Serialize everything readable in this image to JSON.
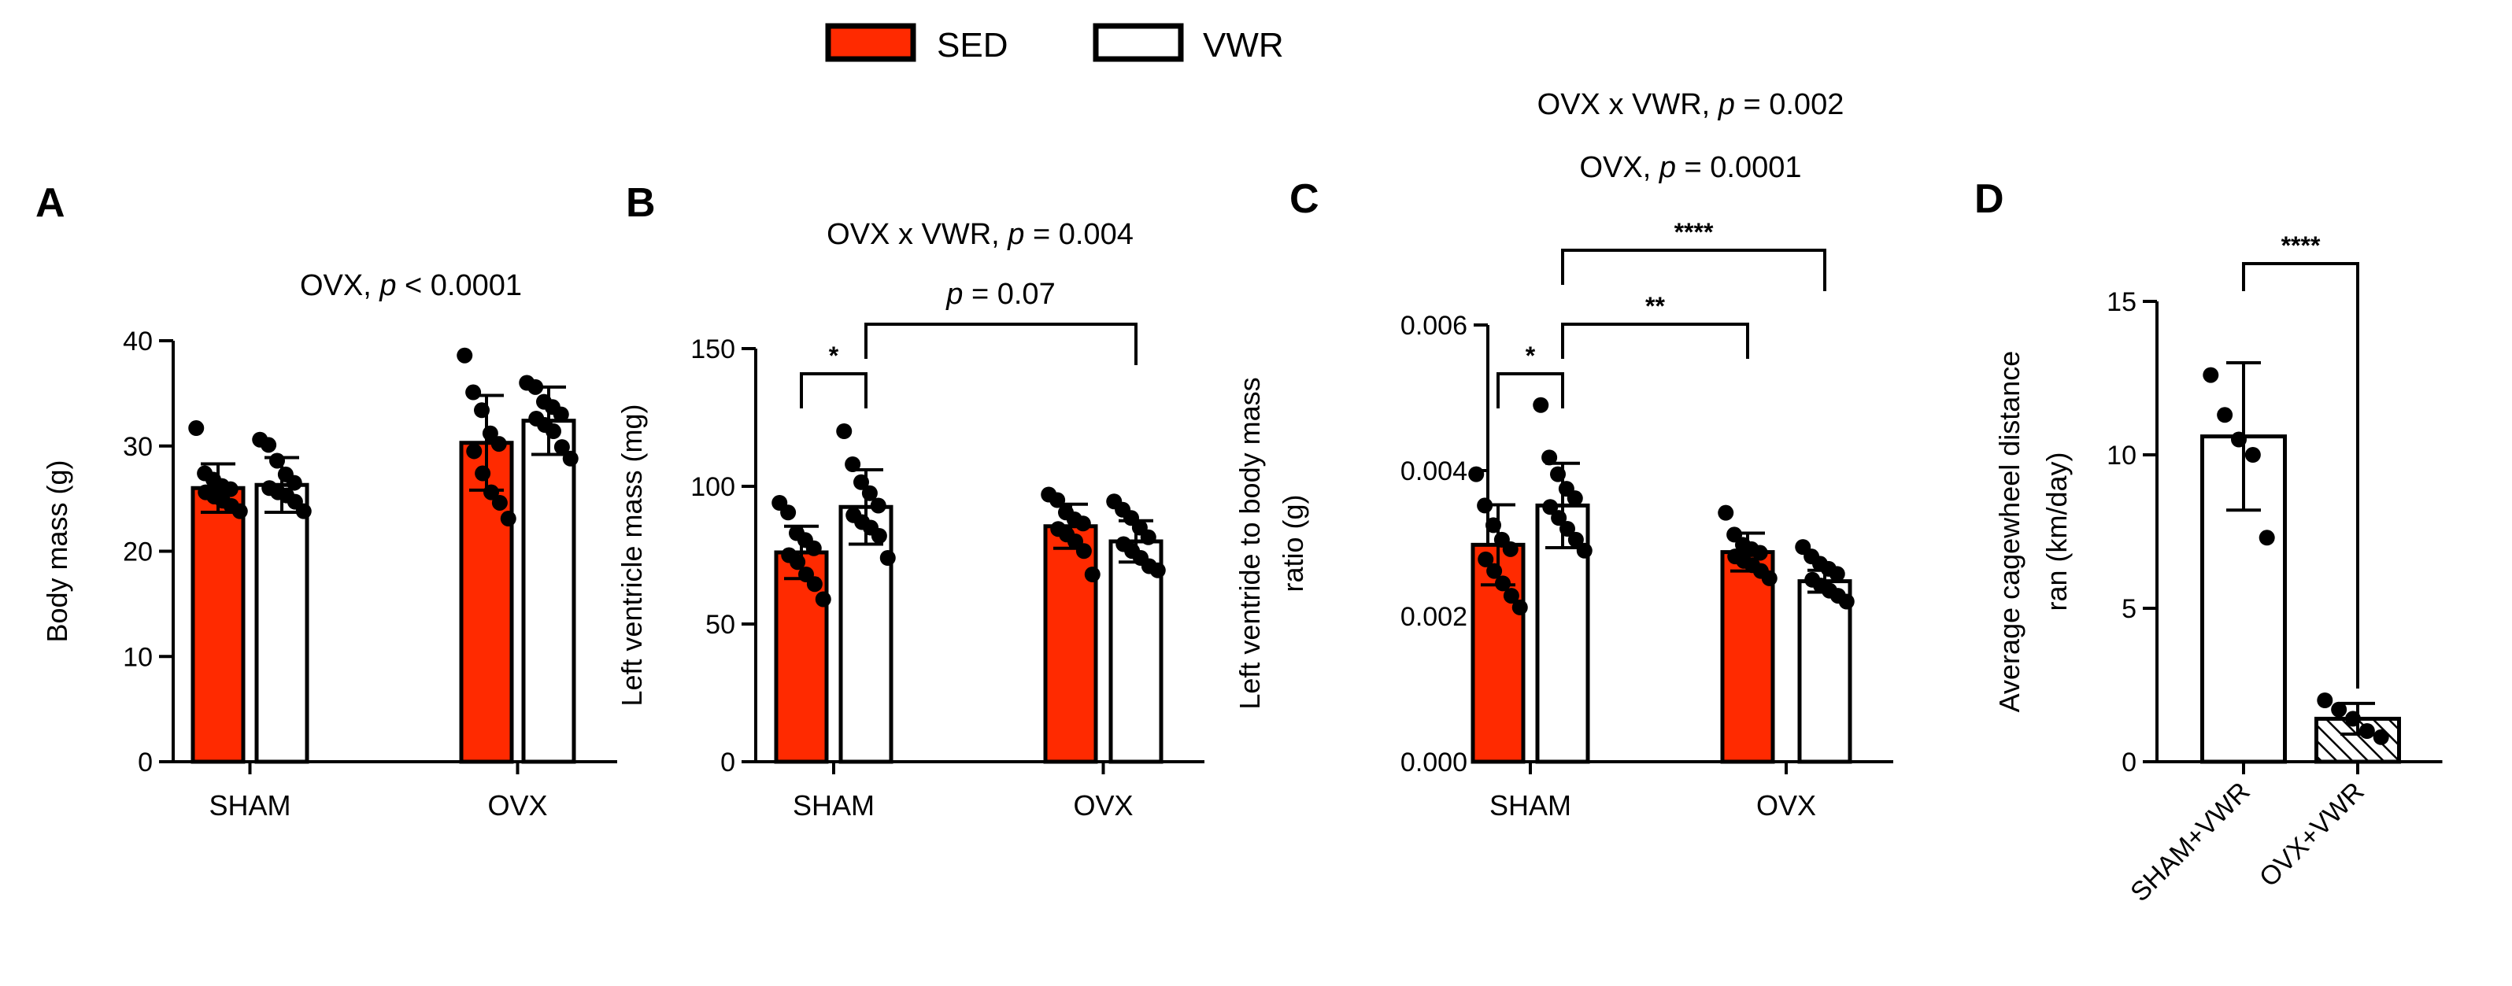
{
  "legend": {
    "items": [
      {
        "label": "SED",
        "color": "#ff2a00"
      },
      {
        "label": "VWR",
        "color": "#ffffff"
      }
    ]
  },
  "colors": {
    "sed": "#ff2a00",
    "vwr": "#ffffff",
    "axis": "#000000"
  },
  "chart_data": [
    {
      "id": "A",
      "panel_label": "A",
      "type": "bar",
      "title": "",
      "ylabel": "Body mass (g)",
      "xlabel": "",
      "categories": [
        "SHAM",
        "OVX"
      ],
      "ylim": [
        0,
        40
      ],
      "yticks": [
        0,
        10,
        20,
        30,
        40
      ],
      "series": [
        {
          "name": "SED",
          "values": [
            26.0,
            30.3
          ],
          "errors": [
            2.3,
            4.5
          ],
          "points": [
            [
              31.7,
              27.4,
              26.8,
              26.2,
              25.9,
              25.6,
              25.2,
              24.8,
              24.3,
              23.8
            ],
            [
              38.6,
              35.1,
              33.4,
              31.2,
              30.2,
              29.5,
              27.4,
              25.6,
              24.6,
              23.1
            ]
          ]
        },
        {
          "name": "VWR",
          "values": [
            26.3,
            32.4
          ],
          "errors": [
            2.6,
            3.2
          ],
          "points": [
            [
              30.6,
              30.1,
              28.6,
              27.3,
              26.5,
              26.0,
              25.6,
              25.3,
              24.7,
              23.8
            ],
            [
              36.0,
              35.6,
              34.2,
              33.7,
              33.0,
              32.6,
              32.0,
              31.4,
              29.9,
              28.8
            ]
          ]
        }
      ],
      "annotations": [
        {
          "kind": "header",
          "lines": [
            {
              "pre": "OVX, ",
              "p": "p",
              "post": " < 0.0001"
            }
          ]
        }
      ]
    },
    {
      "id": "B",
      "panel_label": "B",
      "type": "bar",
      "title": "",
      "ylabel": "Left ventricle mass (mg)",
      "xlabel": "",
      "categories": [
        "SHAM",
        "OVX"
      ],
      "ylim": [
        0,
        150
      ],
      "yticks": [
        0,
        50,
        100,
        150
      ],
      "series": [
        {
          "name": "SED",
          "values": [
            76.0,
            85.5
          ],
          "errors": [
            9.5,
            8.0
          ],
          "points": [
            [
              94.0,
              90.5,
              83.0,
              80.5,
              77.5,
              75.0,
              72.5,
              68.0,
              64.5,
              59.0
            ],
            [
              97.0,
              95.0,
              90.5,
              88.0,
              86.5,
              84.5,
              82.5,
              80.0,
              76.5,
              68.0
            ]
          ]
        },
        {
          "name": "VWR",
          "values": [
            92.5,
            80.0
          ],
          "errors": [
            13.5,
            7.5
          ],
          "points": [
            [
              120.0,
              108.0,
              101.5,
              97.5,
              93.0,
              89.5,
              87.0,
              85.0,
              82.0,
              74.0
            ],
            [
              94.5,
              91.5,
              88.5,
              85.0,
              81.5,
              79.0,
              76.5,
              74.0,
              71.0,
              69.5
            ]
          ]
        }
      ],
      "annotations": [
        {
          "kind": "header",
          "lines": [
            {
              "pre": "OVX x VWR, ",
              "p": "p",
              "post": " = 0.004"
            }
          ]
        },
        {
          "kind": "bracket",
          "from": [
            0,
            0
          ],
          "to": [
            0,
            1
          ],
          "label": "*"
        },
        {
          "kind": "bracket",
          "from": [
            0,
            1
          ],
          "to": [
            1,
            1
          ],
          "label_pre": "",
          "p": "p",
          "label_post": " = 0.07"
        }
      ]
    },
    {
      "id": "C",
      "panel_label": "C",
      "type": "bar",
      "title": "",
      "ylabel": "Left ventride to body mass ratio (g)",
      "ylabel_lines": [
        "Left ventride to body mass",
        "ratio (g)"
      ],
      "xlabel": "",
      "categories": [
        "SHAM",
        "OVX"
      ],
      "ylim": [
        0,
        0.006
      ],
      "yticks": [
        0.0,
        0.002,
        0.004,
        0.006
      ],
      "ytick_labels": [
        "0.000",
        "0.002",
        "0.004",
        "0.006"
      ],
      "series": [
        {
          "name": "SED",
          "values": [
            0.00298,
            0.00288
          ],
          "errors": [
            0.00055,
            0.00026
          ],
          "points": [
            [
              0.00395,
              0.00352,
              0.00325,
              0.00305,
              0.00292,
              0.00278,
              0.00262,
              0.00245,
              0.00228,
              0.00212
            ],
            [
              0.00342,
              0.00312,
              0.00298,
              0.00292,
              0.00287,
              0.00282,
              0.00276,
              0.0027,
              0.00262,
              0.00252
            ]
          ]
        },
        {
          "name": "VWR",
          "values": [
            0.00352,
            0.00248
          ],
          "errors": [
            0.00058,
            0.00015
          ],
          "points": [
            [
              0.0049,
              0.00418,
              0.00395,
              0.00375,
              0.00362,
              0.0035,
              0.00335,
              0.0032,
              0.00305,
              0.0029
            ],
            [
              0.00295,
              0.00282,
              0.00272,
              0.00265,
              0.00258,
              0.0025,
              0.00242,
              0.00235,
              0.00228,
              0.0022
            ]
          ]
        }
      ],
      "annotations": [
        {
          "kind": "header",
          "lines": [
            {
              "pre": "OVX x VWR, ",
              "p": "p",
              "post": " = 0.002"
            },
            {
              "pre": "OVX, ",
              "p": "p",
              "post": " = 0.0001"
            }
          ]
        },
        {
          "kind": "bracket",
          "from": [
            0,
            0
          ],
          "to": [
            0,
            1
          ],
          "label": "*"
        },
        {
          "kind": "bracket",
          "from": [
            0,
            1
          ],
          "to": [
            1,
            0
          ],
          "label": "**"
        },
        {
          "kind": "bracket",
          "from": [
            0,
            1
          ],
          "to": [
            1,
            1
          ],
          "label": "****"
        }
      ]
    },
    {
      "id": "D",
      "panel_label": "D",
      "type": "bar",
      "title": "",
      "ylabel": "Average cagewheel distance ran (km/day)",
      "ylabel_lines": [
        "Average cagewheel distance",
        "ran (km/day)"
      ],
      "xlabel": "",
      "categories": [
        "SHAM+VWR",
        "OVX+VWR"
      ],
      "ylim": [
        0,
        15
      ],
      "yticks": [
        0,
        5,
        10,
        15
      ],
      "values": [
        10.6,
        1.4
      ],
      "errors": [
        2.4,
        0.5
      ],
      "points": [
        [
          12.6,
          11.3,
          10.5,
          10.0,
          7.3
        ],
        [
          2.0,
          1.7,
          1.4,
          1.0,
          0.8
        ]
      ],
      "fills": [
        "plain",
        "hatched"
      ],
      "annotations": [
        {
          "kind": "bracket",
          "from": [
            0
          ],
          "to": [
            1
          ],
          "label": "****"
        }
      ]
    }
  ]
}
